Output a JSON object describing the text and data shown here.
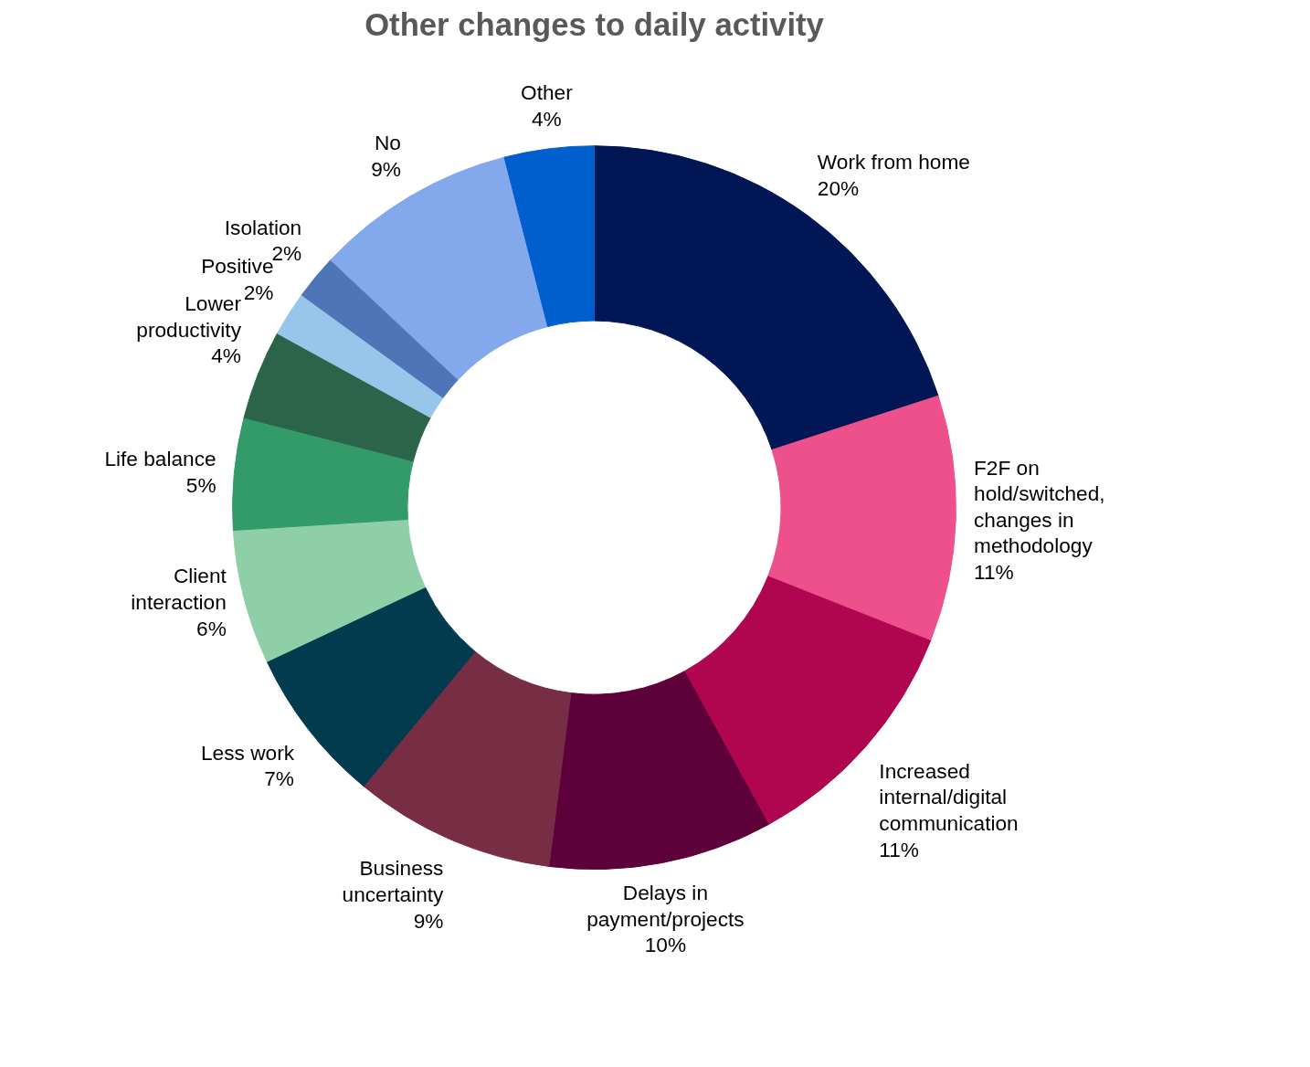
{
  "chart_data": {
    "type": "donut",
    "title": "Other changes to daily activity",
    "categories": [
      "Work from home",
      "F2F on hold/switched, changes in methodology",
      "Increased internal/digital communication",
      "Delays in payment/projects",
      "Business uncertainty",
      "Less work",
      "Client interaction",
      "Life balance",
      "Lower productivity",
      "Positive",
      "Isolation",
      "No",
      "Other"
    ],
    "values": [
      20,
      11,
      11,
      10,
      9,
      7,
      6,
      5,
      4,
      2,
      2,
      9,
      4
    ],
    "colors": [
      "#011655",
      "#ee508c",
      "#b0064f",
      "#5e003a",
      "#772e44",
      "#023b4d",
      "#8ecfa8",
      "#339a6a",
      "#2c644b",
      "#98c6ea",
      "#4f74b8",
      "#84a8ec",
      "#005fce"
    ],
    "value_labels": [
      "20%",
      "11%",
      "11%",
      "10%",
      "9%",
      "7%",
      "6%",
      "5%",
      "4%",
      "2%",
      "2%",
      "9%",
      "4%"
    ]
  }
}
